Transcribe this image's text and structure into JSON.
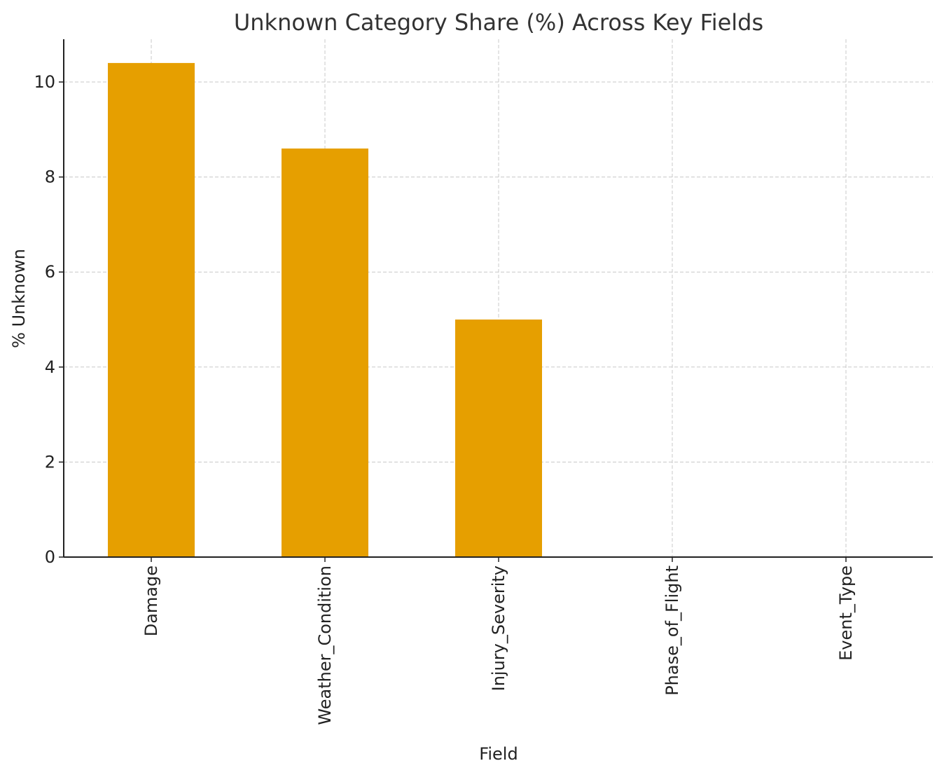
{
  "chart_data": {
    "type": "bar",
    "title": "Unknown Category Share (%) Across Key Fields",
    "xlabel": "Field",
    "ylabel": "% Unknown",
    "categories": [
      "Damage",
      "Weather_Condition",
      "Injury_Severity",
      "Phase_of_Flight",
      "Event_Type"
    ],
    "values": [
      10.4,
      8.6,
      5.0,
      0,
      0
    ],
    "ylim": [
      0,
      10.9
    ],
    "yticks": [
      0,
      2,
      4,
      6,
      8,
      10
    ],
    "grid": true,
    "legend": "none",
    "bar_color": "#E69F00"
  }
}
